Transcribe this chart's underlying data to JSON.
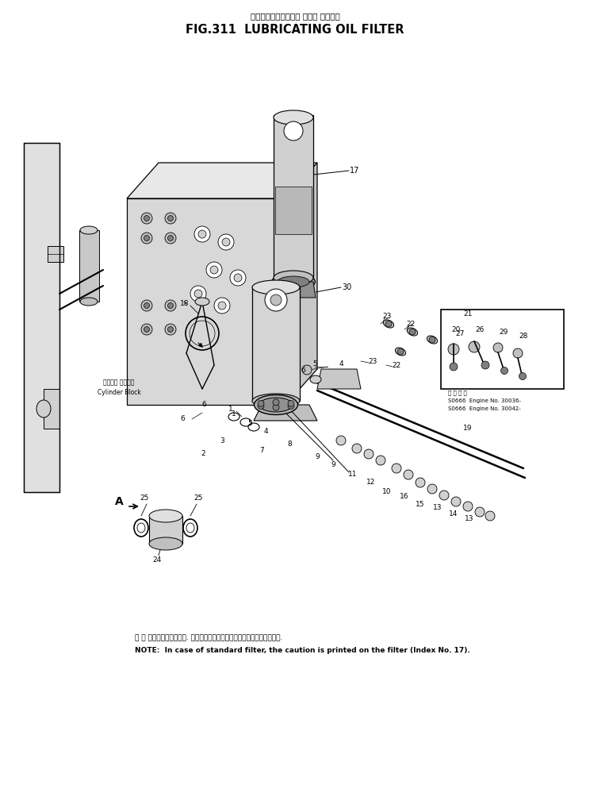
{
  "title_jp": "ルーブリケーティング オイル フィルタ",
  "title_en": "FIG.311  LUBRICATING OIL FILTER",
  "note_jp": "注 ： 標準フィルタの場合. その注意書きはフィルタ上に印刷されています.",
  "note_en": "NOTE:  In case of standard filter, the caution is printed on the filter (Index No. 17).",
  "bg_color": "#ffffff",
  "fig_width": 7.44,
  "fig_height": 9.89,
  "dpi": 100
}
